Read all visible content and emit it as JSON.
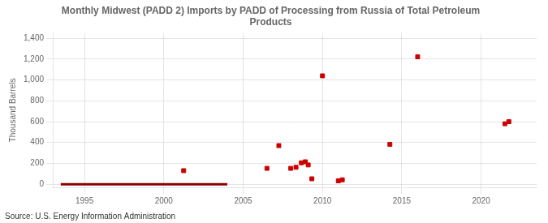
{
  "chart_data": {
    "type": "scatter",
    "title": "Monthly Midwest (PADD 2) Imports by PADD of Processing from Russia of Total Petroleum\nProducts",
    "ylabel": "Thousand Barrels",
    "annotation": "Source: U.S. Energy Information Administration",
    "xlim": [
      1993.0,
      2023.5
    ],
    "ylim": [
      -30,
      1450
    ],
    "xticks": [
      1995,
      2000,
      2005,
      2010,
      2015,
      2020
    ],
    "yticks": [
      0,
      200,
      400,
      600,
      800,
      {
        "value": 1000,
        "label": "1,000"
      },
      {
        "value": 1200,
        "label": "1,200"
      },
      {
        "value": 1400,
        "label": "1,400"
      }
    ],
    "grid": true,
    "series": [
      {
        "type": "line",
        "color": "#8b0000",
        "line_style": "solid",
        "x": [
          1993.5,
          2004.0
        ],
        "values": [
          0,
          0
        ]
      },
      {
        "type": "scatter",
        "color": "#cc0000",
        "marker": "square",
        "x": [
          2001.25,
          2006.5,
          2007.25,
          2008.0,
          2008.33,
          2008.67,
          2008.92,
          2009.1,
          2009.33,
          2010.0,
          2011.0,
          2011.25,
          2014.25,
          2016.0,
          2021.5,
          2021.75
        ],
        "values": [
          130,
          152,
          370,
          152,
          162,
          205,
          215,
          185,
          52,
          1040,
          32,
          42,
          382,
          1222,
          580,
          600
        ]
      }
    ]
  }
}
